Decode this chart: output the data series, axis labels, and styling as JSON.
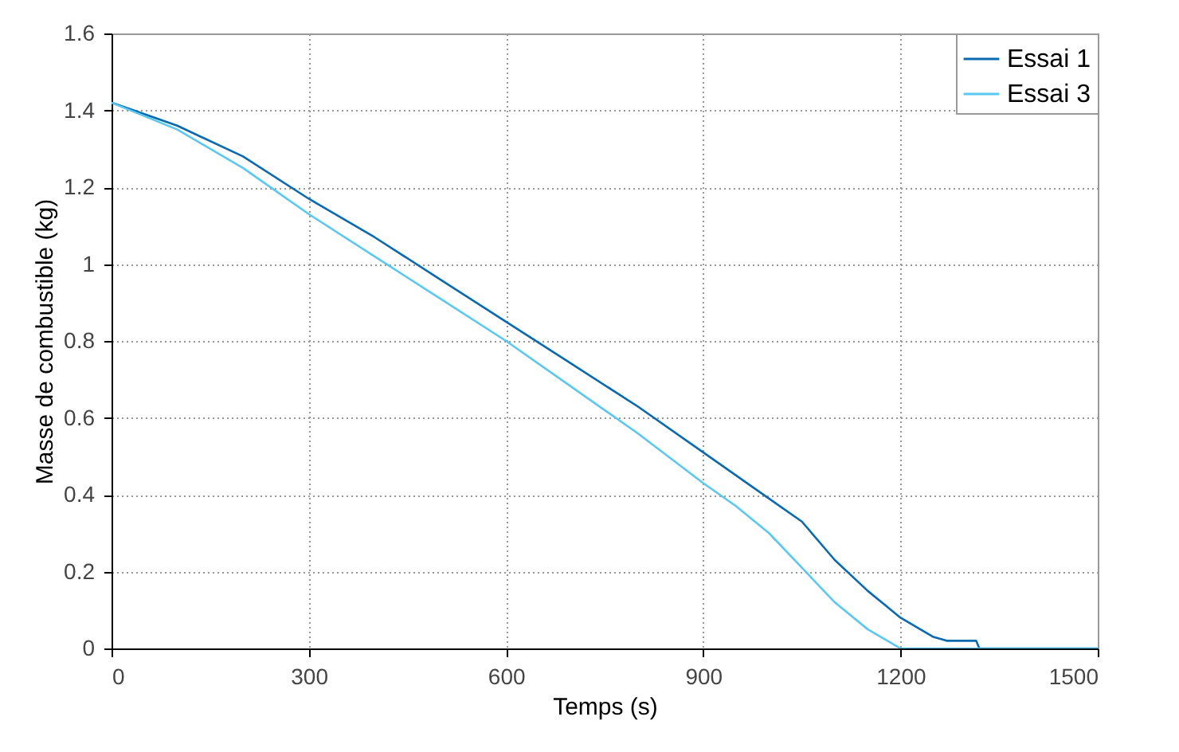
{
  "chart_data": {
    "type": "line",
    "xlabel": "Temps (s)",
    "ylabel": "Masse de combustible (kg)",
    "xlim": [
      0,
      1500
    ],
    "xticks": [
      0,
      300,
      600,
      900,
      1200,
      1500
    ],
    "ylim": [
      0,
      1.6
    ],
    "yticks": [
      0,
      0.2,
      0.4,
      0.6,
      0.8,
      1,
      1.2,
      1.4,
      1.6
    ],
    "grid": true,
    "legend": "top right",
    "line_style": "solid",
    "series": [
      {
        "name": "Essai 1",
        "color": "#0a6aaf",
        "x": [
          0,
          100,
          200,
          300,
          400,
          500,
          600,
          700,
          800,
          900,
          1000,
          1050,
          1100,
          1150,
          1200,
          1250,
          1270,
          1315,
          1320,
          1500
        ],
        "values": [
          1.42,
          1.36,
          1.28,
          1.17,
          1.07,
          0.96,
          0.85,
          0.74,
          0.63,
          0.51,
          0.39,
          0.33,
          0.23,
          0.15,
          0.08,
          0.03,
          0.02,
          0.02,
          0,
          0
        ]
      },
      {
        "name": "Essai 3",
        "color": "#5ac8f0",
        "x": [
          0,
          100,
          200,
          300,
          400,
          500,
          600,
          700,
          800,
          900,
          950,
          1000,
          1050,
          1100,
          1150,
          1180,
          1200,
          1500
        ],
        "values": [
          1.42,
          1.35,
          1.25,
          1.13,
          1.02,
          0.91,
          0.8,
          0.68,
          0.56,
          0.43,
          0.37,
          0.3,
          0.21,
          0.12,
          0.05,
          0.02,
          0,
          0
        ]
      }
    ]
  }
}
